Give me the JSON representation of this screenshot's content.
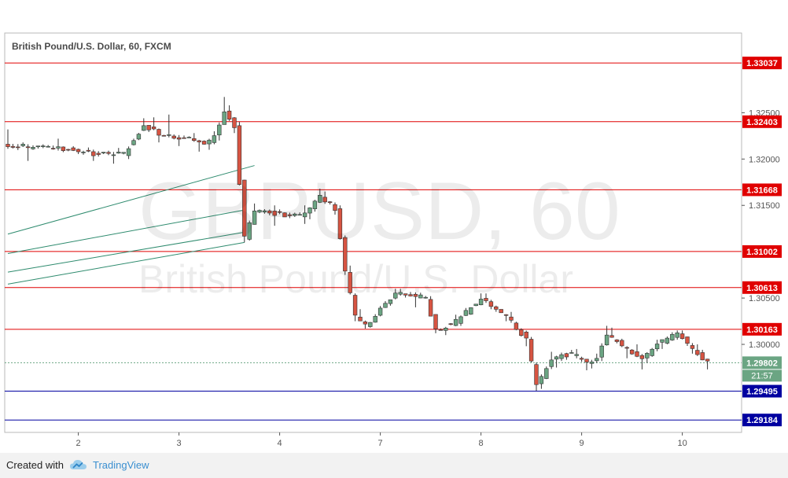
{
  "title": "British Pound/U.S. Dollar, 60, FXCM",
  "watermark": {
    "symbol": "GBPUSD, 60",
    "name": "British Pound/U.S. Dollar"
  },
  "footer": {
    "created_with": "Created with",
    "brand": "TradingView"
  },
  "countdown": "21:57",
  "chart_data": {
    "type": "candlestick",
    "title": "British Pound/U.S. Dollar, 60, FXCM",
    "ylim": [
      1.2905,
      1.3336
    ],
    "y_ticks": [
      "1.32500",
      "1.32000",
      "1.31500",
      "1.30500",
      "1.30000"
    ],
    "x_ticks": [
      {
        "label": "2",
        "slot": 14
      },
      {
        "label": "3",
        "slot": 34
      },
      {
        "label": "4",
        "slot": 54
      },
      {
        "label": "7",
        "slot": 74
      },
      {
        "label": "8",
        "slot": 94
      },
      {
        "label": "9",
        "slot": 114
      },
      {
        "label": "10",
        "slot": 134
      }
    ],
    "last_price": {
      "value": 1.29802,
      "label": "1.29802"
    },
    "colors": {
      "up": "#6ba583",
      "down": "#d75442",
      "wick": "#333333",
      "level_red": "#e00000",
      "level_blue": "#0000a0",
      "trendline": "#2e8b6e"
    },
    "horizontal_levels": [
      {
        "value": 1.33037,
        "label": "1.33037",
        "color": "red"
      },
      {
        "value": 1.32403,
        "label": "1.32403",
        "color": "red"
      },
      {
        "value": 1.31668,
        "label": "1.31668",
        "color": "red"
      },
      {
        "value": 1.31002,
        "label": "1.31002",
        "color": "red"
      },
      {
        "value": 1.30613,
        "label": "1.30613",
        "color": "red"
      },
      {
        "value": 1.30163,
        "label": "1.30163",
        "color": "red"
      },
      {
        "value": 1.29495,
        "label": "1.29495",
        "color": "blue"
      },
      {
        "value": 1.29184,
        "label": "1.29184",
        "color": "blue"
      }
    ],
    "trendlines": [
      {
        "from": {
          "slot": 0,
          "price": 1.3119
        },
        "to": {
          "slot": 49,
          "price": 1.3193
        }
      },
      {
        "from": {
          "slot": 0,
          "price": 1.3098
        },
        "to": {
          "slot": 47,
          "price": 1.3145
        }
      },
      {
        "from": {
          "slot": 0,
          "price": 1.3078
        },
        "to": {
          "slot": 47,
          "price": 1.3121
        }
      },
      {
        "from": {
          "slot": 0,
          "price": 1.3065
        },
        "to": {
          "slot": 47,
          "price": 1.311
        }
      }
    ],
    "segments": [
      {
        "from": 0,
        "to": 10,
        "start": 1.3215,
        "end": 1.3212,
        "low": 1.3198,
        "high": 1.3232
      },
      {
        "from": 10,
        "to": 18,
        "start": 1.3212,
        "end": 1.3206,
        "low": 1.3198,
        "high": 1.3222
      },
      {
        "from": 18,
        "to": 24,
        "start": 1.3206,
        "end": 1.3205,
        "low": 1.3195,
        "high": 1.3212
      },
      {
        "from": 24,
        "to": 28,
        "start": 1.3205,
        "end": 1.3237,
        "low": 1.32,
        "high": 1.3244
      },
      {
        "from": 28,
        "to": 32,
        "start": 1.3237,
        "end": 1.3224,
        "low": 1.3218,
        "high": 1.3245
      },
      {
        "from": 32,
        "to": 37,
        "start": 1.3224,
        "end": 1.3224,
        "low": 1.3214,
        "high": 1.3248
      },
      {
        "from": 37,
        "to": 40,
        "start": 1.3224,
        "end": 1.3214,
        "low": 1.3208,
        "high": 1.3228
      },
      {
        "from": 40,
        "to": 42,
        "start": 1.3214,
        "end": 1.3225,
        "low": 1.321,
        "high": 1.323
      },
      {
        "from": 42,
        "to": 44,
        "start": 1.3225,
        "end": 1.325,
        "low": 1.322,
        "high": 1.3267
      },
      {
        "from": 44,
        "to": 46,
        "start": 1.325,
        "end": 1.3235,
        "low": 1.3228,
        "high": 1.3258
      },
      {
        "from": 46,
        "to": 48,
        "start": 1.3235,
        "end": 1.3115,
        "low": 1.311,
        "high": 1.324
      },
      {
        "from": 48,
        "to": 50,
        "start": 1.3115,
        "end": 1.3145,
        "low": 1.3112,
        "high": 1.3152
      },
      {
        "from": 50,
        "to": 56,
        "start": 1.3145,
        "end": 1.314,
        "low": 1.3128,
        "high": 1.315
      },
      {
        "from": 56,
        "to": 60,
        "start": 1.314,
        "end": 1.314,
        "low": 1.313,
        "high": 1.315
      },
      {
        "from": 60,
        "to": 63,
        "start": 1.314,
        "end": 1.316,
        "low": 1.3135,
        "high": 1.3168
      },
      {
        "from": 63,
        "to": 66,
        "start": 1.316,
        "end": 1.3147,
        "low": 1.314,
        "high": 1.3165
      },
      {
        "from": 66,
        "to": 68,
        "start": 1.3147,
        "end": 1.308,
        "low": 1.3075,
        "high": 1.315
      },
      {
        "from": 68,
        "to": 70,
        "start": 1.308,
        "end": 1.303,
        "low": 1.3025,
        "high": 1.3085
      },
      {
        "from": 70,
        "to": 72,
        "start": 1.303,
        "end": 1.302,
        "low": 1.3017,
        "high": 1.3038
      },
      {
        "from": 72,
        "to": 78,
        "start": 1.302,
        "end": 1.3055,
        "low": 1.3018,
        "high": 1.306
      },
      {
        "from": 78,
        "to": 84,
        "start": 1.3055,
        "end": 1.305,
        "low": 1.304,
        "high": 1.306
      },
      {
        "from": 84,
        "to": 86,
        "start": 1.305,
        "end": 1.3015,
        "low": 1.3012,
        "high": 1.3052
      },
      {
        "from": 86,
        "to": 90,
        "start": 1.3015,
        "end": 1.3025,
        "low": 1.301,
        "high": 1.3032
      },
      {
        "from": 90,
        "to": 95,
        "start": 1.3025,
        "end": 1.305,
        "low": 1.302,
        "high": 1.3055
      },
      {
        "from": 95,
        "to": 100,
        "start": 1.305,
        "end": 1.303,
        "low": 1.3025,
        "high": 1.3055
      },
      {
        "from": 100,
        "to": 104,
        "start": 1.303,
        "end": 1.3005,
        "low": 1.2998,
        "high": 1.3035
      },
      {
        "from": 104,
        "to": 106,
        "start": 1.3005,
        "end": 1.2955,
        "low": 1.295,
        "high": 1.3008
      },
      {
        "from": 106,
        "to": 109,
        "start": 1.2955,
        "end": 1.2985,
        "low": 1.2952,
        "high": 1.2992
      },
      {
        "from": 109,
        "to": 113,
        "start": 1.2985,
        "end": 1.299,
        "low": 1.2975,
        "high": 1.2994
      },
      {
        "from": 113,
        "to": 116,
        "start": 1.299,
        "end": 1.298,
        "low": 1.2972,
        "high": 1.2995
      },
      {
        "from": 116,
        "to": 118,
        "start": 1.298,
        "end": 1.2985,
        "low": 1.2974,
        "high": 1.299
      },
      {
        "from": 118,
        "to": 120,
        "start": 1.2985,
        "end": 1.301,
        "low": 1.2982,
        "high": 1.302
      },
      {
        "from": 120,
        "to": 124,
        "start": 1.301,
        "end": 1.2995,
        "low": 1.2985,
        "high": 1.3018
      },
      {
        "from": 124,
        "to": 127,
        "start": 1.2995,
        "end": 1.2985,
        "low": 1.2973,
        "high": 1.3
      },
      {
        "from": 127,
        "to": 130,
        "start": 1.2985,
        "end": 1.3,
        "low": 1.298,
        "high": 1.3005
      },
      {
        "from": 130,
        "to": 134,
        "start": 1.3,
        "end": 1.3012,
        "low": 1.2995,
        "high": 1.3015
      },
      {
        "from": 134,
        "to": 137,
        "start": 1.3012,
        "end": 1.2995,
        "low": 1.299,
        "high": 1.3015
      },
      {
        "from": 137,
        "to": 140,
        "start": 1.2995,
        "end": 1.298,
        "low": 1.2973,
        "high": 1.3
      }
    ]
  }
}
